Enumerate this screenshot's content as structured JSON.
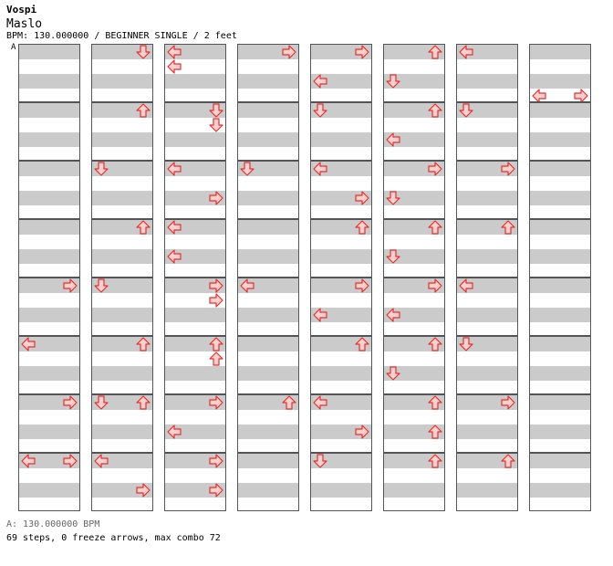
{
  "header": {
    "artist": "Vospi",
    "song": "Maslo",
    "meta": "BPM: 130.000000 / BEGINNER SINGLE / 2 feet",
    "bpm_marker": "A"
  },
  "footer": {
    "bpm_legend": "A: 130.000000 BPM",
    "stats": "69 steps, 0 freeze arrows, max combo 72"
  },
  "colors": {
    "stripe": "#cbcbcb",
    "arrow_fill": "#ffd0d0",
    "arrow_stroke": "#e03030",
    "bpm_line": "#4aa3df"
  },
  "chart": {
    "columns": 8,
    "measures_per_column": 8,
    "arrows": [
      {
        "c": 1,
        "m": 0,
        "b": 0,
        "d": "down",
        "x": "right"
      },
      {
        "c": 2,
        "m": 0,
        "b": 0,
        "d": "left",
        "x": "left"
      },
      {
        "c": 2,
        "m": 0,
        "b": 1,
        "d": "left",
        "x": "left"
      },
      {
        "c": 3,
        "m": 0,
        "b": 0,
        "d": "right",
        "x": "right"
      },
      {
        "c": 4,
        "m": 0,
        "b": 0,
        "d": "right",
        "x": "right"
      },
      {
        "c": 4,
        "m": 0,
        "b": 2,
        "d": "left",
        "x": "left"
      },
      {
        "c": 5,
        "m": 0,
        "b": 0,
        "d": "up",
        "x": "right"
      },
      {
        "c": 5,
        "m": 0,
        "b": 2,
        "d": "down",
        "x": "left"
      },
      {
        "c": 6,
        "m": 0,
        "b": 0,
        "d": "left",
        "x": "left"
      },
      {
        "c": 7,
        "m": 0,
        "b": 3,
        "d": "left",
        "x": "left"
      },
      {
        "c": 7,
        "m": 0,
        "b": 3,
        "d": "right",
        "x": "right"
      },
      {
        "c": 1,
        "m": 1,
        "b": 0,
        "d": "up",
        "x": "right"
      },
      {
        "c": 2,
        "m": 1,
        "b": 0,
        "d": "down",
        "x": "right"
      },
      {
        "c": 2,
        "m": 1,
        "b": 1,
        "d": "down",
        "x": "right"
      },
      {
        "c": 4,
        "m": 1,
        "b": 0,
        "d": "down",
        "x": "left"
      },
      {
        "c": 5,
        "m": 1,
        "b": 0,
        "d": "up",
        "x": "right"
      },
      {
        "c": 5,
        "m": 1,
        "b": 2,
        "d": "left",
        "x": "left"
      },
      {
        "c": 6,
        "m": 1,
        "b": 0,
        "d": "down",
        "x": "left"
      },
      {
        "c": 1,
        "m": 2,
        "b": 0,
        "d": "down",
        "x": "left"
      },
      {
        "c": 2,
        "m": 2,
        "b": 0,
        "d": "left",
        "x": "left"
      },
      {
        "c": 2,
        "m": 2,
        "b": 2,
        "d": "right",
        "x": "right"
      },
      {
        "c": 3,
        "m": 2,
        "b": 0,
        "d": "down",
        "x": "left"
      },
      {
        "c": 4,
        "m": 2,
        "b": 0,
        "d": "left",
        "x": "left"
      },
      {
        "c": 4,
        "m": 2,
        "b": 2,
        "d": "right",
        "x": "right"
      },
      {
        "c": 5,
        "m": 2,
        "b": 0,
        "d": "right",
        "x": "right"
      },
      {
        "c": 5,
        "m": 2,
        "b": 2,
        "d": "down",
        "x": "left"
      },
      {
        "c": 6,
        "m": 2,
        "b": 0,
        "d": "right",
        "x": "right"
      },
      {
        "c": 1,
        "m": 3,
        "b": 0,
        "d": "up",
        "x": "right"
      },
      {
        "c": 2,
        "m": 3,
        "b": 0,
        "d": "left",
        "x": "left"
      },
      {
        "c": 2,
        "m": 3,
        "b": 2,
        "d": "left",
        "x": "left"
      },
      {
        "c": 4,
        "m": 3,
        "b": 0,
        "d": "up",
        "x": "right"
      },
      {
        "c": 5,
        "m": 3,
        "b": 0,
        "d": "up",
        "x": "right"
      },
      {
        "c": 5,
        "m": 3,
        "b": 2,
        "d": "down",
        "x": "left"
      },
      {
        "c": 6,
        "m": 3,
        "b": 0,
        "d": "up",
        "x": "right"
      },
      {
        "c": 0,
        "m": 4,
        "b": 0,
        "d": "right",
        "x": "right"
      },
      {
        "c": 1,
        "m": 4,
        "b": 0,
        "d": "down",
        "x": "left"
      },
      {
        "c": 2,
        "m": 4,
        "b": 0,
        "d": "right",
        "x": "right"
      },
      {
        "c": 2,
        "m": 4,
        "b": 1,
        "d": "right",
        "x": "right"
      },
      {
        "c": 3,
        "m": 4,
        "b": 0,
        "d": "left",
        "x": "left"
      },
      {
        "c": 4,
        "m": 4,
        "b": 0,
        "d": "right",
        "x": "right"
      },
      {
        "c": 4,
        "m": 4,
        "b": 2,
        "d": "left",
        "x": "left"
      },
      {
        "c": 5,
        "m": 4,
        "b": 0,
        "d": "right",
        "x": "right"
      },
      {
        "c": 5,
        "m": 4,
        "b": 2,
        "d": "left",
        "x": "left"
      },
      {
        "c": 6,
        "m": 4,
        "b": 0,
        "d": "left",
        "x": "left"
      },
      {
        "c": 0,
        "m": 5,
        "b": 0,
        "d": "left",
        "x": "left"
      },
      {
        "c": 1,
        "m": 5,
        "b": 0,
        "d": "up",
        "x": "right"
      },
      {
        "c": 2,
        "m": 5,
        "b": 0,
        "d": "up",
        "x": "right"
      },
      {
        "c": 2,
        "m": 5,
        "b": 1,
        "d": "up",
        "x": "right"
      },
      {
        "c": 4,
        "m": 5,
        "b": 0,
        "d": "up",
        "x": "right"
      },
      {
        "c": 5,
        "m": 5,
        "b": 0,
        "d": "up",
        "x": "right"
      },
      {
        "c": 5,
        "m": 5,
        "b": 2,
        "d": "down",
        "x": "left"
      },
      {
        "c": 6,
        "m": 5,
        "b": 0,
        "d": "down",
        "x": "left"
      },
      {
        "c": 0,
        "m": 6,
        "b": 0,
        "d": "right",
        "x": "right"
      },
      {
        "c": 1,
        "m": 6,
        "b": 0,
        "d": "down",
        "x": "left"
      },
      {
        "c": 1,
        "m": 6,
        "b": 0,
        "d": "up",
        "x": "right"
      },
      {
        "c": 2,
        "m": 6,
        "b": 0,
        "d": "right",
        "x": "right"
      },
      {
        "c": 2,
        "m": 6,
        "b": 2,
        "d": "left",
        "x": "left"
      },
      {
        "c": 3,
        "m": 6,
        "b": 0,
        "d": "up",
        "x": "right"
      },
      {
        "c": 4,
        "m": 6,
        "b": 0,
        "d": "left",
        "x": "left"
      },
      {
        "c": 4,
        "m": 6,
        "b": 2,
        "d": "right",
        "x": "right"
      },
      {
        "c": 5,
        "m": 6,
        "b": 0,
        "d": "up",
        "x": "right"
      },
      {
        "c": 5,
        "m": 6,
        "b": 2,
        "d": "up",
        "x": "right"
      },
      {
        "c": 6,
        "m": 6,
        "b": 0,
        "d": "right",
        "x": "right"
      },
      {
        "c": 0,
        "m": 7,
        "b": 0,
        "d": "left",
        "x": "left"
      },
      {
        "c": 0,
        "m": 7,
        "b": 0,
        "d": "right",
        "x": "right"
      },
      {
        "c": 1,
        "m": 7,
        "b": 0,
        "d": "left",
        "x": "left"
      },
      {
        "c": 1,
        "m": 7,
        "b": 2,
        "d": "right",
        "x": "right"
      },
      {
        "c": 2,
        "m": 7,
        "b": 0,
        "d": "right",
        "x": "right"
      },
      {
        "c": 2,
        "m": 7,
        "b": 2,
        "d": "right",
        "x": "right"
      },
      {
        "c": 4,
        "m": 7,
        "b": 0,
        "d": "down",
        "x": "left"
      },
      {
        "c": 5,
        "m": 7,
        "b": 0,
        "d": "up",
        "x": "right"
      },
      {
        "c": 6,
        "m": 7,
        "b": 0,
        "d": "up",
        "x": "right"
      }
    ]
  }
}
